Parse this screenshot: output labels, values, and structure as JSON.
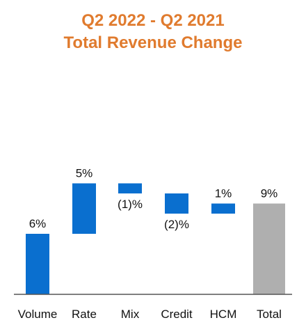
{
  "chart_data": {
    "type": "bar",
    "subtype": "waterfall",
    "title": "Q2 2022 - Q2 2021",
    "subtitle": "Total Revenue Change",
    "categories": [
      "Volume",
      "Rate",
      "Mix",
      "Credit",
      "HCM",
      "Total"
    ],
    "values": [
      6,
      5,
      -1,
      -2,
      1,
      9
    ],
    "data_labels": [
      "6%",
      "5%",
      "(1)%",
      "(2)%",
      "1%",
      "9%"
    ],
    "value_unit": "%",
    "ylim": [
      0,
      12
    ],
    "grid": false,
    "legend": "none",
    "colors": {
      "increment": "#0A6FCF",
      "total": "#AFAFAF",
      "title": "#E07B2E",
      "baseline": "#555555"
    }
  }
}
